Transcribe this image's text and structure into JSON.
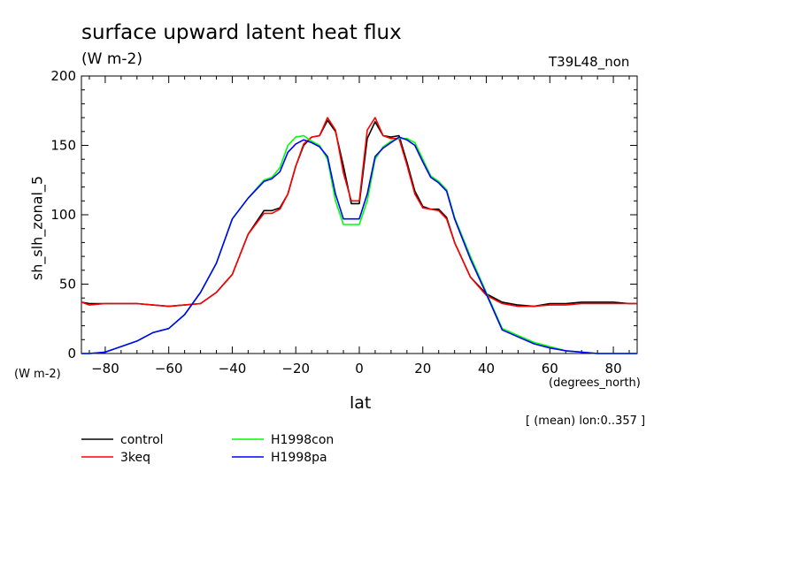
{
  "title": "surface upward latent heat flux",
  "units": "(W m-2)",
  "run_label": "T39L48_non",
  "y_axis_label": "sh_slh_zonal_5",
  "y_unit_label": "(W m-2)",
  "x_unit_label": "(degrees_north)",
  "x_axis_label": "lat",
  "mean_note": "[ (mean) lon:0..357 ]",
  "chart_data": {
    "type": "line",
    "xlim": [
      -87.5,
      87.5
    ],
    "ylim": [
      0,
      200
    ],
    "x_ticks": [
      -80,
      -60,
      -40,
      -20,
      0,
      20,
      40,
      60,
      80
    ],
    "y_ticks": [
      0,
      50,
      100,
      150,
      200
    ],
    "grid": false,
    "legend_position": "bottom-left, below the plot",
    "x": [
      -87.5,
      -85,
      -80,
      -75,
      -70,
      -65,
      -60,
      -55,
      -50,
      -45,
      -40,
      -35,
      -30,
      -27.5,
      -25,
      -22.5,
      -20,
      -17.5,
      -15,
      -12.5,
      -10,
      -7.5,
      -5,
      -2.5,
      0,
      2.5,
      5,
      7.5,
      10,
      12.5,
      15,
      17.5,
      20,
      22.5,
      25,
      27.5,
      30,
      35,
      40,
      45,
      50,
      55,
      60,
      65,
      70,
      75,
      80,
      85,
      87.5
    ],
    "series": [
      {
        "name": "control",
        "color": "#000000",
        "values": [
          37,
          36,
          36,
          36,
          36,
          35,
          34,
          35,
          36,
          44,
          57,
          86,
          103,
          103,
          105,
          115,
          135,
          150,
          156,
          157,
          168,
          160,
          135,
          108,
          108,
          155,
          167,
          157,
          156,
          157,
          138,
          117,
          106,
          104,
          104,
          98,
          80,
          55,
          43,
          37,
          35,
          34,
          36,
          36,
          37,
          37,
          37,
          36,
          36
        ]
      },
      {
        "name": "3keq",
        "color": "#ff0000",
        "values": [
          37,
          35,
          36,
          36,
          36,
          35,
          34,
          35,
          36,
          44,
          57,
          86,
          101,
          101,
          104,
          115,
          135,
          151,
          156,
          157,
          170,
          161,
          130,
          110,
          110,
          161,
          170,
          157,
          155,
          155,
          136,
          115,
          105,
          104,
          103,
          97,
          80,
          55,
          42,
          36,
          34,
          34,
          35,
          35,
          36,
          36,
          36,
          36,
          36
        ]
      },
      {
        "name": "H1998con",
        "color": "#00ff00",
        "values": [
          0,
          0,
          1,
          5,
          9,
          15,
          18,
          28,
          44,
          65,
          97,
          112,
          125,
          127,
          134,
          150,
          156,
          157,
          153,
          150,
          140,
          110,
          93,
          93,
          93,
          110,
          140,
          149,
          153,
          155,
          155,
          152,
          140,
          128,
          124,
          118,
          98,
          70,
          44,
          18,
          13,
          8,
          5,
          2,
          1,
          0,
          0,
          0,
          0
        ]
      },
      {
        "name": "H1998pa",
        "color": "#0000ff",
        "values": [
          0,
          0,
          1,
          5,
          9,
          15,
          18,
          28,
          44,
          65,
          97,
          112,
          124,
          126,
          131,
          145,
          151,
          154,
          152,
          149,
          142,
          115,
          97,
          97,
          97,
          115,
          142,
          148,
          152,
          156,
          154,
          150,
          138,
          127,
          123,
          117,
          97,
          68,
          43,
          17,
          12,
          7,
          4,
          2,
          1,
          0,
          0,
          0,
          0
        ]
      }
    ]
  }
}
